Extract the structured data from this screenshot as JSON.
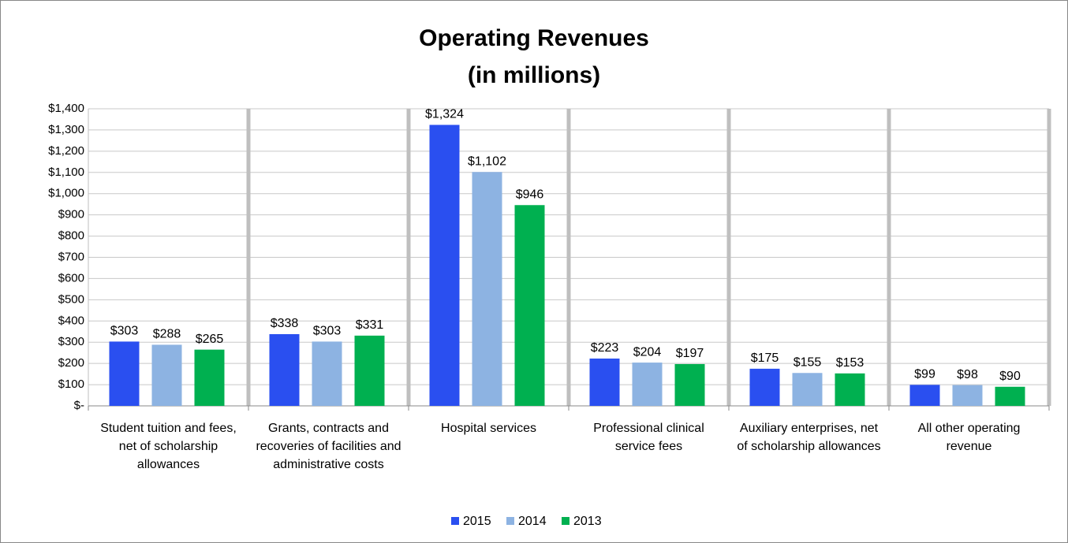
{
  "chart_data": {
    "type": "bar",
    "title": "Operating Revenues",
    "subtitle": "(in millions)",
    "categories": [
      "Student tuition and fees, net of scholarship allowances",
      "Grants, contracts and recoveries of facilities and administrative costs",
      "Hospital services",
      "Professional clinical service fees",
      "Auxiliary enterprises, net of scholarship allowances",
      "All other operating revenue"
    ],
    "series": [
      {
        "name": "2015",
        "color": "#2a4ff0",
        "values": [
          303,
          338,
          1324,
          223,
          175,
          99
        ],
        "value_labels": [
          "$303",
          "$338",
          "$1,324",
          "$223",
          "$175",
          "$99"
        ]
      },
      {
        "name": "2014",
        "color": "#8db3e2",
        "values": [
          288,
          303,
          1102,
          204,
          155,
          98
        ],
        "value_labels": [
          "$288",
          "$303",
          "$1,102",
          "$204",
          "$155",
          "$98"
        ]
      },
      {
        "name": "2013",
        "color": "#00b050",
        "values": [
          265,
          331,
          946,
          197,
          153,
          90
        ],
        "value_labels": [
          "$265",
          "$331",
          "$946",
          "$197",
          "$153",
          "$90"
        ]
      }
    ],
    "ylim": [
      0,
      1400
    ],
    "yticks": [
      {
        "value": 0,
        "label": "$-"
      },
      {
        "value": 100,
        "label": "$100"
      },
      {
        "value": 200,
        "label": "$200"
      },
      {
        "value": 300,
        "label": "$300"
      },
      {
        "value": 400,
        "label": "$400"
      },
      {
        "value": 500,
        "label": "$500"
      },
      {
        "value": 600,
        "label": "$600"
      },
      {
        "value": 700,
        "label": "$700"
      },
      {
        "value": 800,
        "label": "$800"
      },
      {
        "value": 900,
        "label": "$900"
      },
      {
        "value": 1000,
        "label": "$1,000"
      },
      {
        "value": 1100,
        "label": "$1,100"
      },
      {
        "value": 1200,
        "label": "$1,200"
      },
      {
        "value": 1300,
        "label": "$1,300"
      },
      {
        "value": 1400,
        "label": "$1,400"
      }
    ],
    "grid": true,
    "legend": "bottom"
  }
}
